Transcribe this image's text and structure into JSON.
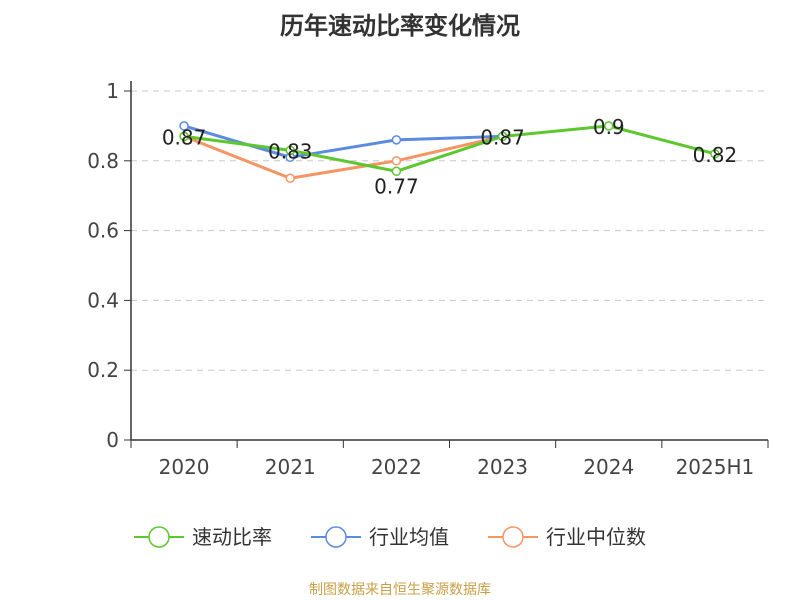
{
  "chart_data": {
    "type": "line",
    "title": "历年速动比率变化情况",
    "categories": [
      "2020",
      "2021",
      "2022",
      "2023",
      "2024",
      "2025H1"
    ],
    "ylim": [
      0,
      1
    ],
    "yticks": [
      "0",
      "0.2",
      "0.4",
      "0.6",
      "0.8",
      "1"
    ],
    "grid": true,
    "legend_position": "bottom",
    "series": [
      {
        "name": "速动比率",
        "color": "#5cc72e",
        "values": [
          0.87,
          0.83,
          0.77,
          0.87,
          0.9,
          0.82
        ],
        "labels": [
          "0.87",
          "0.83",
          "0.77",
          "0.87",
          "0.9",
          "0.82"
        ]
      },
      {
        "name": "行业均值",
        "color": "#5b8be0",
        "values": [
          0.9,
          0.81,
          0.86,
          0.87,
          null,
          null
        ]
      },
      {
        "name": "行业中位数",
        "color": "#f59563",
        "values": [
          0.87,
          0.75,
          0.8,
          0.87,
          null,
          null
        ]
      }
    ]
  },
  "source": "制图数据来自恒生聚源数据库"
}
